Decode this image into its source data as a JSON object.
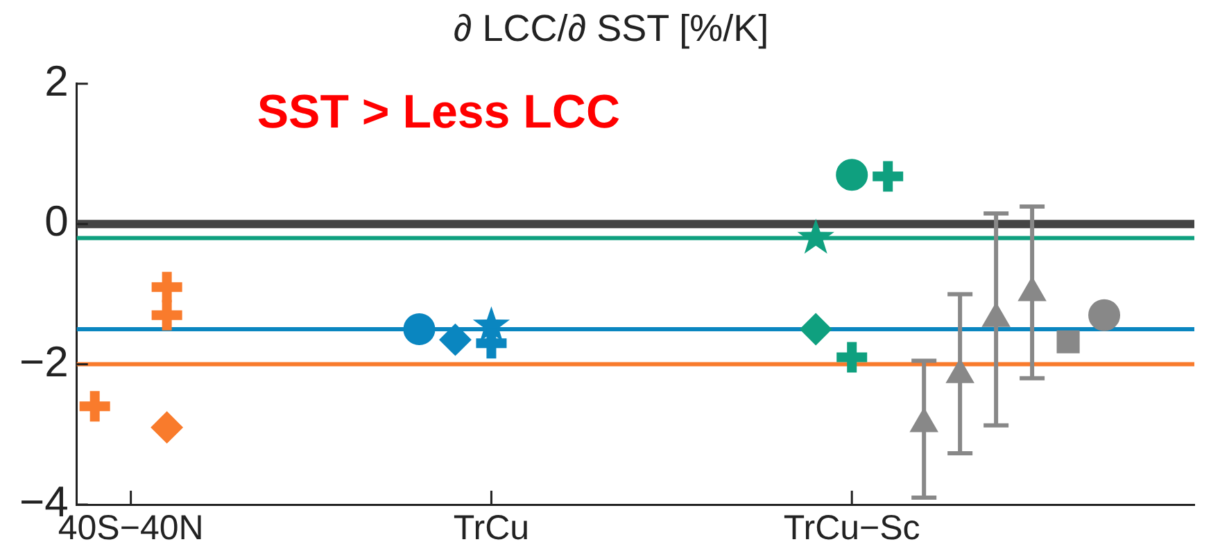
{
  "chart_data": {
    "type": "scatter",
    "title": "∂ LCC/∂ SST [%/K]",
    "annotations": [
      "SST > Less LCC"
    ],
    "categories": [
      null,
      "40S−40N",
      null,
      null,
      null,
      null,
      null,
      null,
      null,
      null,
      null,
      "TrCu",
      null,
      null,
      null,
      null,
      null,
      null,
      null,
      null,
      null,
      "TrCu−Sc",
      null,
      null,
      null,
      null,
      null,
      null,
      null,
      null,
      null
    ],
    "ylim": [
      -4,
      2
    ],
    "yticks": [
      {
        "value": -4,
        "label": "−4"
      },
      {
        "value": -2,
        "label": "−2"
      },
      {
        "value": 0,
        "label": "0"
      },
      {
        "value": 2,
        "label": "2"
      }
    ],
    "grid": false,
    "legend": false,
    "bands": [
      {
        "axis": "y",
        "from": -0.06,
        "to": 0.06,
        "color": "#444444"
      }
    ],
    "ref_lines": [
      {
        "axis": "y",
        "value": -0.2,
        "color": "#0fa07f"
      },
      {
        "axis": "y",
        "value": -1.5,
        "color": "#0a86c0"
      },
      {
        "axis": "y",
        "value": -2,
        "color": "#f97b2c"
      }
    ],
    "series": [
      {
        "color": "#f97b2c",
        "marker": "cross",
        "values": [
          null,
          null,
          -0.9,
          null,
          null,
          null,
          null,
          null,
          null,
          null,
          null,
          null,
          null,
          null,
          null,
          null,
          null,
          null,
          null,
          null,
          null,
          null,
          null,
          null,
          null,
          null,
          null,
          null,
          null,
          null,
          null
        ]
      },
      {
        "color": "#f97b2c",
        "marker": "cross",
        "values": [
          -2.6,
          null,
          -1.3,
          null,
          null,
          null,
          null,
          null,
          null,
          null,
          null,
          null,
          null,
          null,
          null,
          null,
          null,
          null,
          null,
          null,
          null,
          null,
          null,
          null,
          null,
          null,
          null,
          null,
          null,
          null,
          null
        ]
      },
      {
        "color": "#f97b2c",
        "marker": "diamond",
        "values": [
          null,
          null,
          -2.9,
          null,
          null,
          null,
          null,
          null,
          null,
          null,
          null,
          null,
          null,
          null,
          null,
          null,
          null,
          null,
          null,
          null,
          null,
          null,
          null,
          null,
          null,
          null,
          null,
          null,
          null,
          null,
          null
        ]
      },
      {
        "color": "#0a86c0",
        "marker": "circle",
        "values": [
          null,
          null,
          null,
          null,
          null,
          null,
          null,
          null,
          null,
          -1.5,
          null,
          null,
          null,
          null,
          null,
          null,
          null,
          null,
          null,
          null,
          null,
          null,
          null,
          null,
          null,
          null,
          null,
          null,
          null,
          null,
          null
        ]
      },
      {
        "color": "#0a86c0",
        "marker": "diamond",
        "values": [
          null,
          null,
          null,
          null,
          null,
          null,
          null,
          null,
          null,
          null,
          -1.65,
          null,
          null,
          null,
          null,
          null,
          null,
          null,
          null,
          null,
          null,
          null,
          null,
          null,
          null,
          null,
          null,
          null,
          null,
          null,
          null
        ]
      },
      {
        "color": "#0a86c0",
        "marker": "star",
        "values": [
          null,
          null,
          null,
          null,
          null,
          null,
          null,
          null,
          null,
          null,
          null,
          -1.45,
          null,
          null,
          null,
          null,
          null,
          null,
          null,
          null,
          null,
          null,
          null,
          null,
          null,
          null,
          null,
          null,
          null,
          null,
          null
        ]
      },
      {
        "color": "#0a86c0",
        "marker": "cross",
        "values": [
          null,
          null,
          null,
          null,
          null,
          null,
          null,
          null,
          null,
          null,
          null,
          -1.7,
          null,
          null,
          null,
          null,
          null,
          null,
          null,
          null,
          null,
          null,
          null,
          null,
          null,
          null,
          null,
          null,
          null,
          null,
          null
        ]
      },
      {
        "color": "#0fa07f",
        "marker": "circle",
        "values": [
          null,
          null,
          null,
          null,
          null,
          null,
          null,
          null,
          null,
          null,
          null,
          null,
          null,
          null,
          null,
          null,
          null,
          null,
          null,
          null,
          null,
          0.7,
          null,
          null,
          null,
          null,
          null,
          null,
          null,
          null,
          null
        ]
      },
      {
        "color": "#0fa07f",
        "marker": "cross",
        "values": [
          null,
          null,
          null,
          null,
          null,
          null,
          null,
          null,
          null,
          null,
          null,
          null,
          null,
          null,
          null,
          null,
          null,
          null,
          null,
          null,
          null,
          null,
          0.68,
          null,
          null,
          null,
          null,
          null,
          null,
          null,
          null
        ]
      },
      {
        "color": "#0fa07f",
        "marker": "cross",
        "values": [
          null,
          null,
          null,
          null,
          null,
          null,
          null,
          null,
          null,
          null,
          null,
          null,
          null,
          null,
          null,
          null,
          null,
          null,
          null,
          null,
          null,
          -1.9,
          null,
          null,
          null,
          null,
          null,
          null,
          null,
          null,
          null
        ]
      },
      {
        "color": "#0fa07f",
        "marker": "star",
        "values": [
          null,
          null,
          null,
          null,
          null,
          null,
          null,
          null,
          null,
          null,
          null,
          null,
          null,
          null,
          null,
          null,
          null,
          null,
          null,
          null,
          -0.2,
          null,
          null,
          null,
          null,
          null,
          null,
          null,
          null,
          null,
          null
        ]
      },
      {
        "color": "#0fa07f",
        "marker": "diamond",
        "values": [
          null,
          null,
          null,
          null,
          null,
          null,
          null,
          null,
          null,
          null,
          null,
          null,
          null,
          null,
          null,
          null,
          null,
          null,
          null,
          null,
          -1.5,
          null,
          null,
          null,
          null,
          null,
          null,
          null,
          null,
          null,
          null
        ]
      },
      {
        "color": "#888888",
        "marker": "triangle",
        "values": [
          null,
          null,
          null,
          null,
          null,
          null,
          null,
          null,
          null,
          null,
          null,
          null,
          null,
          null,
          null,
          null,
          null,
          null,
          null,
          null,
          null,
          null,
          null,
          -2.85,
          -2.15,
          -1.35,
          -0.98,
          null,
          null,
          null,
          null
        ],
        "errors": [
          null,
          null,
          null,
          null,
          null,
          null,
          null,
          null,
          null,
          null,
          null,
          null,
          null,
          null,
          null,
          null,
          null,
          null,
          null,
          null,
          null,
          null,
          null,
          [
            -3.9,
            -1.95
          ],
          [
            -3.27,
            -1.0
          ],
          [
            -2.87,
            0.15
          ],
          [
            -2.2,
            0.25
          ],
          null,
          null,
          null,
          null
        ]
      },
      {
        "color": "#888888",
        "marker": "square",
        "values": [
          null,
          null,
          null,
          null,
          null,
          null,
          null,
          null,
          null,
          null,
          null,
          null,
          null,
          null,
          null,
          null,
          null,
          null,
          null,
          null,
          null,
          null,
          null,
          null,
          null,
          null,
          null,
          -1.68,
          null,
          null,
          null
        ]
      },
      {
        "color": "#888888",
        "marker": "circle",
        "values": [
          null,
          null,
          null,
          null,
          null,
          null,
          null,
          null,
          null,
          null,
          null,
          null,
          null,
          null,
          null,
          null,
          null,
          null,
          null,
          null,
          null,
          null,
          null,
          null,
          null,
          null,
          null,
          null,
          -1.3,
          null,
          null
        ]
      }
    ]
  }
}
